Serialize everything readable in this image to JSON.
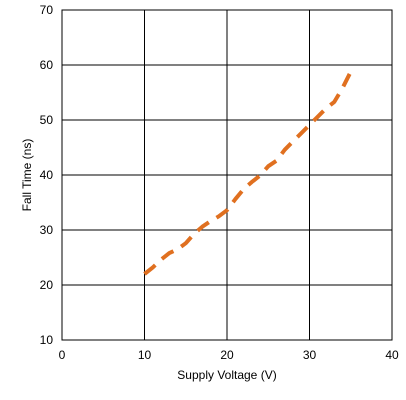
{
  "chart_data": {
    "type": "line",
    "title": "",
    "xlabel": "Supply Voltage (V)",
    "ylabel": "Fall Time (ns)",
    "xlim": [
      0,
      40
    ],
    "ylim": [
      10,
      70
    ],
    "xticks": [
      0,
      10,
      20,
      30,
      40
    ],
    "yticks": [
      10,
      20,
      30,
      40,
      50,
      60,
      70
    ],
    "grid": true,
    "legend": "none",
    "series": [
      {
        "line_style": "dashed",
        "color": "#E07020",
        "x": [
          10,
          11,
          12,
          13,
          14,
          15,
          16,
          17,
          18,
          19,
          20,
          21,
          22,
          23,
          24,
          25,
          26,
          27,
          28,
          29,
          30,
          31,
          32,
          33,
          34,
          35
        ],
        "y": [
          22,
          23.2,
          24.6,
          25.8,
          26.5,
          27.6,
          29.3,
          30.6,
          31.6,
          32.5,
          33.6,
          35.6,
          37.4,
          38.7,
          39.9,
          41.6,
          42.6,
          44.6,
          46.1,
          47.6,
          49.1,
          50.6,
          52.1,
          53.3,
          55.8,
          58.8
        ]
      }
    ]
  }
}
